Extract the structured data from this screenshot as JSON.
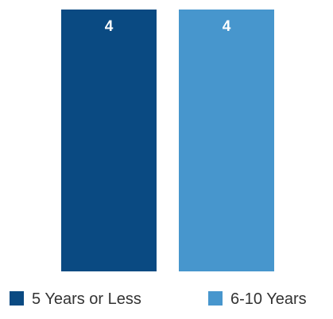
{
  "chart_data": {
    "type": "bar",
    "categories": [
      "5 Years or Less",
      "6-10 Years"
    ],
    "values": [
      4,
      4
    ],
    "colors": [
      "#0a4a82",
      "#4796cd"
    ],
    "data_labels": [
      "4",
      "4"
    ],
    "ylim": [
      0,
      4
    ],
    "grid": false,
    "legend_position": "bottom"
  }
}
